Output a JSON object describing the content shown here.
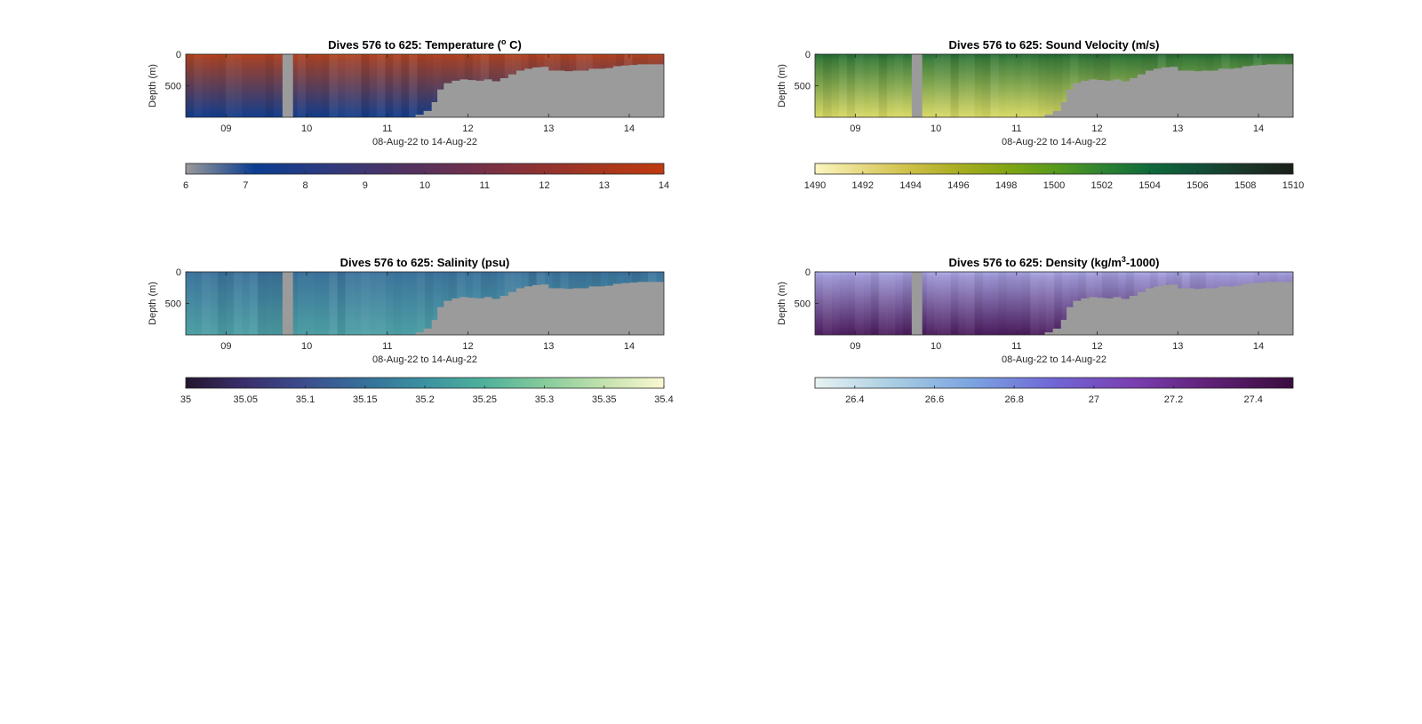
{
  "chart_data": [
    {
      "type": "heatmap",
      "variable": "temperature",
      "title": "Dives 576 to 625: Temperature (",
      "title_sup": "o",
      "title_end": " C)",
      "ylabel": "Depth (m)",
      "xlabel": "08-Aug-22 to 14-Aug-22",
      "x_ticks": [
        "09",
        "10",
        "11",
        "12",
        "13",
        "14"
      ],
      "x_tick_days": [
        9,
        10,
        11,
        12,
        13,
        14
      ],
      "xlim": [
        8.5,
        14.43
      ],
      "y_ticks": [
        "0",
        "500"
      ],
      "y_tick_values": [
        0,
        500
      ],
      "ylim": [
        0,
        1000
      ],
      "y_reversed": true,
      "gap_days": [
        9.7,
        9.83
      ],
      "colorbar": {
        "ticks": [
          "6",
          "7",
          "8",
          "9",
          "10",
          "11",
          "12",
          "13",
          "14"
        ],
        "tick_values": [
          6,
          7,
          8,
          9,
          10,
          11,
          12,
          13,
          14
        ],
        "range": [
          6,
          14
        ],
        "colors": [
          "#9a9a9a",
          "#0b3d91",
          "#2c3b80",
          "#4a3466",
          "#6a3050",
          "#8a3236",
          "#a6361f",
          "#bf3a10"
        ]
      },
      "surface_color": "#b8421a",
      "deep_color": "#123d8c",
      "mask_color": "#9b9b9b"
    },
    {
      "type": "heatmap",
      "variable": "sound_velocity",
      "title": "Dives 576 to 625: Sound Velocity (m/s)",
      "ylabel": "Depth (m)",
      "xlabel": "08-Aug-22 to 14-Aug-22",
      "x_ticks": [
        "09",
        "10",
        "11",
        "12",
        "13",
        "14"
      ],
      "x_tick_days": [
        9,
        10,
        11,
        12,
        13,
        14
      ],
      "xlim": [
        8.5,
        14.43
      ],
      "y_ticks": [
        "0",
        "500"
      ],
      "y_tick_values": [
        0,
        500
      ],
      "ylim": [
        0,
        1000
      ],
      "y_reversed": true,
      "gap_days": [
        9.7,
        9.83
      ],
      "colorbar": {
        "ticks": [
          "1490",
          "1492",
          "1494",
          "1496",
          "1498",
          "1500",
          "1502",
          "1504",
          "1506",
          "1508",
          "1510"
        ],
        "tick_values": [
          1490,
          1492,
          1494,
          1496,
          1498,
          1500,
          1502,
          1504,
          1506,
          1508,
          1510
        ],
        "range": [
          1490,
          1510
        ],
        "colors": [
          "#fbf6c0",
          "#e6d880",
          "#cdbf46",
          "#a9ad22",
          "#82a514",
          "#599a1c",
          "#2f8430",
          "#0f6a3a",
          "#12503a",
          "#1a3628",
          "#1a1f1a"
        ]
      },
      "surface_color": "#1f6b33",
      "deep_color": "#d9d964",
      "mask_color": "#9b9b9b"
    },
    {
      "type": "heatmap",
      "variable": "salinity",
      "title": "Dives 576 to 625: Salinity (psu)",
      "ylabel": "Depth (m)",
      "xlabel": "08-Aug-22 to 14-Aug-22",
      "x_ticks": [
        "09",
        "10",
        "11",
        "12",
        "13",
        "14"
      ],
      "x_tick_days": [
        9,
        10,
        11,
        12,
        13,
        14
      ],
      "xlim": [
        8.5,
        14.43
      ],
      "y_ticks": [
        "0",
        "500"
      ],
      "y_tick_values": [
        0,
        500
      ],
      "ylim": [
        0,
        1000
      ],
      "y_reversed": true,
      "gap_days": [
        9.7,
        9.83
      ],
      "colorbar": {
        "ticks": [
          "35",
          "35.05",
          "35.1",
          "35.15",
          "35.2",
          "35.25",
          "35.3",
          "35.35",
          "35.4"
        ],
        "tick_values": [
          35,
          35.05,
          35.1,
          35.15,
          35.2,
          35.25,
          35.3,
          35.35,
          35.4
        ],
        "range": [
          35,
          35.4
        ],
        "colors": [
          "#24152e",
          "#3a2f6e",
          "#3b4e8e",
          "#36709a",
          "#3a92a0",
          "#4fb19c",
          "#86cb9a",
          "#c3e2ad",
          "#fcf8d2"
        ]
      },
      "surface_color": "#3a6f9a",
      "deep_color": "#4c9fa4",
      "mask_color": "#9b9b9b"
    },
    {
      "type": "heatmap",
      "variable": "density",
      "title": "Dives 576 to 625: Density (kg/m",
      "title_sup": "3",
      "title_end": "-1000)",
      "ylabel": "Depth (m)",
      "xlabel": "08-Aug-22 to 14-Aug-22",
      "x_ticks": [
        "09",
        "10",
        "11",
        "12",
        "13",
        "14"
      ],
      "x_tick_days": [
        9,
        10,
        11,
        12,
        13,
        14
      ],
      "xlim": [
        8.5,
        14.43
      ],
      "y_ticks": [
        "0",
        "500"
      ],
      "y_tick_values": [
        0,
        500
      ],
      "ylim": [
        0,
        1000
      ],
      "y_reversed": true,
      "gap_days": [
        9.7,
        9.83
      ],
      "colorbar": {
        "ticks": [
          "26.4",
          "26.6",
          "26.8",
          "27",
          "27.2",
          "27.4"
        ],
        "tick_values": [
          26.4,
          26.6,
          26.8,
          27,
          27.2,
          27.4
        ],
        "range": [
          26.3,
          27.5
        ],
        "colors": [
          "#e8f2f2",
          "#a7cde2",
          "#7aa2e0",
          "#7066d6",
          "#7a3eb0",
          "#5e1f74",
          "#3a0d3e"
        ]
      },
      "surface_color": "#a9a8e6",
      "deep_color": "#4a1b5c",
      "mask_color": "#9b9b9b"
    }
  ],
  "seafloor_profile": {
    "days": [
      11.35,
      11.45,
      11.55,
      11.62,
      11.7,
      11.8,
      11.9,
      12.0,
      12.1,
      12.2,
      12.3,
      12.4,
      12.5,
      12.6,
      12.7,
      12.8,
      12.9,
      13.0,
      13.1,
      13.2,
      13.3,
      13.4,
      13.5,
      13.6,
      13.7,
      13.8,
      13.9,
      14.0,
      14.1,
      14.2,
      14.43
    ],
    "depth_m": [
      960,
      900,
      760,
      560,
      460,
      420,
      400,
      410,
      420,
      400,
      430,
      380,
      320,
      260,
      230,
      210,
      200,
      260,
      260,
      270,
      260,
      260,
      230,
      230,
      220,
      190,
      180,
      170,
      160,
      160,
      160
    ]
  }
}
